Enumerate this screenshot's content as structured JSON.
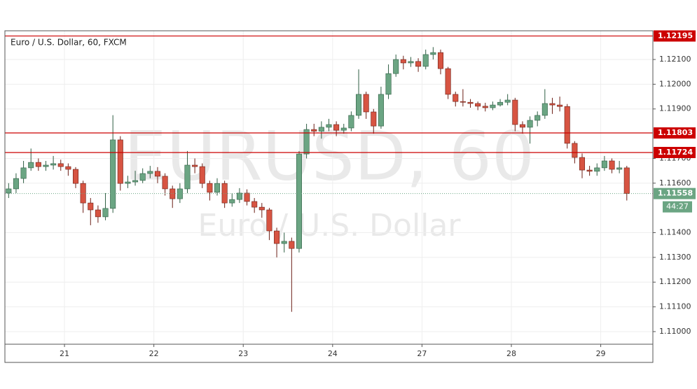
{
  "chart_data": {
    "type": "candlestick",
    "title": "Euro / U.S. Dollar, 60, FXCM",
    "watermark": "EURUSD, 60",
    "watermark_subtitle": "Euro / U.S. Dollar",
    "up_color": "#6ba583",
    "down_color": "#d75442",
    "level_color": "#cc0000",
    "xlim": [
      -0.5,
      86.5
    ],
    "xticks": [
      {
        "value": 7.5,
        "label": "21"
      },
      {
        "value": 19.5,
        "label": "22"
      },
      {
        "value": 31.5,
        "label": "23"
      },
      {
        "value": 43.5,
        "label": "24"
      },
      {
        "value": 55.5,
        "label": "27"
      },
      {
        "value": 67.5,
        "label": "28"
      },
      {
        "value": 79.5,
        "label": "29"
      }
    ],
    "ylim": [
      1.10949,
      1.12216
    ],
    "yticks": [
      {
        "value": 1.11,
        "label": "1.11000"
      },
      {
        "value": 1.111,
        "label": "1.11100"
      },
      {
        "value": 1.112,
        "label": "1.11200"
      },
      {
        "value": 1.113,
        "label": "1.11300"
      },
      {
        "value": 1.114,
        "label": "1.11400"
      },
      {
        "value": 1.116,
        "label": "1.11600"
      },
      {
        "value": 1.117,
        "label": "1.11700"
      },
      {
        "value": 1.119,
        "label": "1.11900"
      },
      {
        "value": 1.12,
        "label": "1.12000"
      },
      {
        "value": 1.121,
        "label": "1.12100"
      }
    ],
    "grid": true,
    "levels": [
      {
        "value": 1.12195,
        "label": "1.12195"
      },
      {
        "value": 1.11803,
        "label": "1.11803"
      },
      {
        "value": 1.11724,
        "label": "1.11724"
      }
    ],
    "last_price": {
      "value": 1.11558,
      "label": "1.11558"
    },
    "countdown": "44:27",
    "open": [
      1.1156,
      1.11577,
      1.11619,
      1.11662,
      1.11684,
      1.11667,
      1.11673,
      1.11679,
      1.11667,
      1.11656,
      1.11599,
      1.1152,
      1.11492,
      1.11464,
      1.11498,
      1.11775,
      1.11599,
      1.11605,
      1.11611,
      1.11639,
      1.11648,
      1.11628,
      1.11577,
      1.11537,
      1.11577,
      1.11673,
      1.11667,
      1.11599,
      1.11563,
      1.11599,
      1.1152,
      1.11534,
      1.1156,
      1.11526,
      1.11503,
      1.11492,
      1.11407,
      1.11356,
      1.11365,
      1.11336,
      1.11718,
      1.11817,
      1.1181,
      1.11826,
      1.11837,
      1.11814,
      1.11823,
      1.11874,
      1.11959,
      1.11888,
      1.11831,
      1.11959,
      1.12043,
      1.121,
      1.12086,
      1.12092,
      1.12072,
      1.1212,
      1.12128,
      1.12063,
      1.11959,
      1.1193,
      1.11927,
      1.11922,
      1.11911,
      1.11905,
      1.11916,
      1.11927,
      1.11936,
      1.11837,
      1.11826,
      1.11854,
      1.11874,
      1.11922,
      1.11916,
      1.1191,
      1.11761,
      1.11704,
      1.11653,
      1.11648,
      1.11662,
      1.1169,
      1.11656,
      1.11662
    ],
    "high": [
      1.116,
      1.1164,
      1.1169,
      1.1174,
      1.117,
      1.1169,
      1.1171,
      1.11695,
      1.1168,
      1.11665,
      1.1161,
      1.1154,
      1.1151,
      1.1156,
      1.11875,
      1.1179,
      1.1163,
      1.1165,
      1.1166,
      1.1167,
      1.11665,
      1.1164,
      1.1159,
      1.116,
      1.1173,
      1.117,
      1.1168,
      1.1161,
      1.1162,
      1.1161,
      1.1156,
      1.1158,
      1.11575,
      1.1154,
      1.1152,
      1.115,
      1.1142,
      1.114,
      1.1138,
      1.1173,
      1.1184,
      1.1184,
      1.1185,
      1.1186,
      1.1185,
      1.1184,
      1.1189,
      1.1206,
      1.1197,
      1.119,
      1.1199,
      1.1208,
      1.1212,
      1.12115,
      1.1211,
      1.12105,
      1.1214,
      1.1215,
      1.1214,
      1.1207,
      1.1197,
      1.1198,
      1.1194,
      1.1193,
      1.11925,
      1.1193,
      1.1194,
      1.1196,
      1.11945,
      1.1185,
      1.1187,
      1.1189,
      1.1198,
      1.11945,
      1.1195,
      1.1192,
      1.1177,
      1.1172,
      1.1167,
      1.1168,
      1.1171,
      1.117,
      1.1169,
      1.1167
    ],
    "low": [
      1.1154,
      1.1156,
      1.116,
      1.1165,
      1.1165,
      1.1165,
      1.11655,
      1.1165,
      1.1163,
      1.1158,
      1.1148,
      1.1143,
      1.1144,
      1.1145,
      1.1148,
      1.1157,
      1.1158,
      1.1159,
      1.116,
      1.1162,
      1.116,
      1.1155,
      1.115,
      1.1152,
      1.1156,
      1.1164,
      1.1158,
      1.1153,
      1.1155,
      1.115,
      1.11505,
      1.1152,
      1.1151,
      1.1148,
      1.1146,
      1.1137,
      1.113,
      1.1132,
      1.1108,
      1.1132,
      1.117,
      1.1179,
      1.1178,
      1.1181,
      1.1179,
      1.118,
      1.1181,
      1.1186,
      1.1186,
      1.118,
      1.1182,
      1.1194,
      1.1203,
      1.1206,
      1.1207,
      1.1205,
      1.1206,
      1.121,
      1.1204,
      1.1194,
      1.1191,
      1.1191,
      1.11905,
      1.11895,
      1.1189,
      1.11895,
      1.1191,
      1.11915,
      1.1181,
      1.118,
      1.1176,
      1.1183,
      1.1186,
      1.1188,
      1.1189,
      1.1174,
      1.1168,
      1.1162,
      1.1163,
      1.1163,
      1.1165,
      1.1164,
      1.1164,
      1.1153
    ],
    "close": [
      1.11577,
      1.11619,
      1.11662,
      1.11684,
      1.11667,
      1.11673,
      1.11679,
      1.11667,
      1.11656,
      1.11599,
      1.1152,
      1.11492,
      1.11464,
      1.11498,
      1.11775,
      1.11599,
      1.11605,
      1.11611,
      1.11639,
      1.11648,
      1.11628,
      1.11577,
      1.11537,
      1.11577,
      1.11673,
      1.11667,
      1.11599,
      1.11563,
      1.11599,
      1.1152,
      1.11534,
      1.1156,
      1.11526,
      1.11503,
      1.11492,
      1.11407,
      1.11356,
      1.11365,
      1.11336,
      1.11718,
      1.11817,
      1.1181,
      1.11826,
      1.11837,
      1.11814,
      1.11823,
      1.11874,
      1.11959,
      1.11888,
      1.11831,
      1.11959,
      1.12043,
      1.121,
      1.12086,
      1.12092,
      1.12072,
      1.1212,
      1.12128,
      1.12063,
      1.11959,
      1.1193,
      1.11927,
      1.11922,
      1.11911,
      1.11905,
      1.11916,
      1.11927,
      1.11936,
      1.11837,
      1.11826,
      1.11854,
      1.11874,
      1.11922,
      1.11916,
      1.1191,
      1.11761,
      1.11704,
      1.11653,
      1.11648,
      1.11662,
      1.1169,
      1.11656,
      1.11662,
      1.11558
    ]
  }
}
